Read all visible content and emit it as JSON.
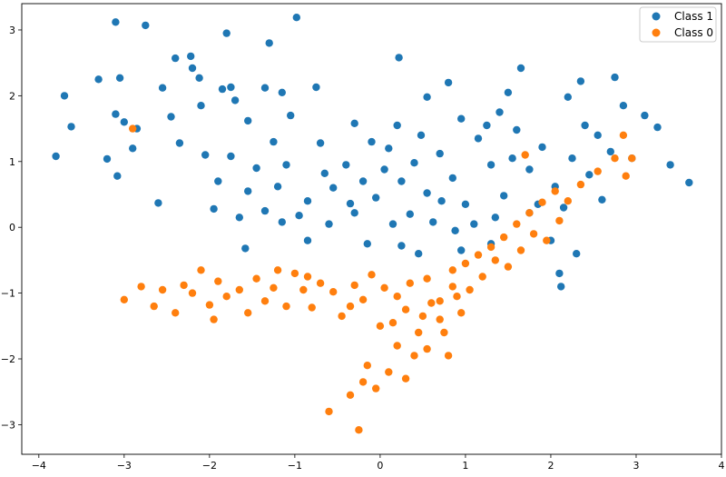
{
  "chart_data": {
    "type": "scatter",
    "title": "",
    "xlabel": "",
    "ylabel": "",
    "xlim": [
      -4.2,
      4.0
    ],
    "ylim": [
      -3.45,
      3.4
    ],
    "xticks": [
      -4,
      -3,
      -2,
      -1,
      0,
      1,
      2,
      3,
      4
    ],
    "yticks": [
      -3,
      -2,
      -1,
      0,
      1,
      2,
      3
    ],
    "xtick_labels": [
      "−4",
      "−3",
      "−2",
      "−1",
      "0",
      "1",
      "2",
      "3",
      "4"
    ],
    "ytick_labels": [
      "−3",
      "−2",
      "−1",
      "0",
      "1",
      "2",
      "3"
    ],
    "grid": false,
    "legend_position": "top-right",
    "legend_entries": [
      {
        "label": "Class 1",
        "color": "#1f77b4"
      },
      {
        "label": "Class 0",
        "color": "#ff7f0e"
      }
    ],
    "series": [
      {
        "name": "Class 1",
        "color": "#1f77b4",
        "points": [
          [
            -3.1,
            3.12
          ],
          [
            -2.75,
            3.07
          ],
          [
            -1.8,
            2.95
          ],
          [
            -1.3,
            2.8
          ],
          [
            -0.98,
            3.19
          ],
          [
            0.22,
            2.58
          ],
          [
            -3.3,
            2.25
          ],
          [
            -3.7,
            2.0
          ],
          [
            -3.62,
            1.53
          ],
          [
            -3.8,
            1.08
          ],
          [
            -3.2,
            1.04
          ],
          [
            -3.08,
            0.78
          ],
          [
            -3.1,
            1.72
          ],
          [
            -3.0,
            1.6
          ],
          [
            -2.85,
            1.5
          ],
          [
            -2.9,
            1.2
          ],
          [
            -3.05,
            2.27
          ],
          [
            -2.55,
            2.12
          ],
          [
            -2.4,
            2.57
          ],
          [
            -2.22,
            2.6
          ],
          [
            -2.2,
            2.42
          ],
          [
            -2.12,
            2.27
          ],
          [
            -1.85,
            2.1
          ],
          [
            -1.75,
            2.13
          ],
          [
            -1.7,
            1.93
          ],
          [
            -1.55,
            1.62
          ],
          [
            -1.35,
            2.12
          ],
          [
            -1.15,
            2.05
          ],
          [
            -1.05,
            1.7
          ],
          [
            -0.75,
            2.13
          ],
          [
            -2.6,
            0.37
          ],
          [
            -1.95,
            0.28
          ],
          [
            -1.58,
            -0.32
          ],
          [
            -1.35,
            0.25
          ],
          [
            -1.15,
            0.08
          ],
          [
            -0.85,
            -0.2
          ],
          [
            -0.6,
            0.05
          ],
          [
            -0.35,
            0.36
          ],
          [
            -0.15,
            -0.25
          ],
          [
            0.25,
            -0.28
          ],
          [
            0.45,
            -0.4
          ],
          [
            0.95,
            -0.35
          ],
          [
            1.3,
            -0.25
          ],
          [
            1.75,
            0.22
          ],
          [
            2.0,
            -0.2
          ],
          [
            2.1,
            -0.7
          ],
          [
            2.3,
            -0.4
          ],
          [
            2.12,
            -0.9
          ],
          [
            3.25,
            1.52
          ],
          [
            3.4,
            0.95
          ],
          [
            3.62,
            0.68
          ],
          [
            3.1,
            1.7
          ],
          [
            2.85,
            1.85
          ],
          [
            2.75,
            2.28
          ],
          [
            2.55,
            1.4
          ],
          [
            2.35,
            2.22
          ],
          [
            2.2,
            1.98
          ],
          [
            1.65,
            2.42
          ],
          [
            1.5,
            2.05
          ],
          [
            1.4,
            1.75
          ],
          [
            0.8,
            2.2
          ],
          [
            0.55,
            1.98
          ],
          [
            0.2,
            1.55
          ],
          [
            -0.1,
            1.3
          ],
          [
            -0.4,
            0.95
          ],
          [
            -0.55,
            0.6
          ],
          [
            -0.85,
            0.4
          ],
          [
            -1.2,
            0.62
          ],
          [
            -1.45,
            0.9
          ],
          [
            -1.75,
            1.08
          ],
          [
            -2.05,
            1.1
          ],
          [
            -2.35,
            1.28
          ],
          [
            0.05,
            0.88
          ],
          [
            0.25,
            0.7
          ],
          [
            0.4,
            0.98
          ],
          [
            0.55,
            0.52
          ],
          [
            0.7,
            1.12
          ],
          [
            0.85,
            0.75
          ],
          [
            1.0,
            0.35
          ],
          [
            1.15,
            1.35
          ],
          [
            1.3,
            0.95
          ],
          [
            1.45,
            0.48
          ],
          [
            1.6,
            1.48
          ],
          [
            1.75,
            0.88
          ],
          [
            1.9,
            1.22
          ],
          [
            2.05,
            0.62
          ],
          [
            2.25,
            1.05
          ],
          [
            2.45,
            0.8
          ],
          [
            2.6,
            0.42
          ],
          [
            2.95,
            1.05
          ],
          [
            -0.3,
            1.58
          ],
          [
            -0.05,
            0.45
          ],
          [
            0.35,
            0.2
          ],
          [
            0.62,
            0.08
          ],
          [
            0.88,
            -0.05
          ],
          [
            1.1,
            0.05
          ],
          [
            -1.55,
            0.55
          ],
          [
            -1.1,
            0.95
          ],
          [
            -0.7,
            1.28
          ],
          [
            -0.2,
            0.7
          ],
          [
            0.1,
            1.2
          ],
          [
            0.48,
            1.4
          ],
          [
            0.95,
            1.65
          ],
          [
            1.25,
            1.55
          ],
          [
            1.55,
            1.05
          ],
          [
            1.85,
            0.35
          ],
          [
            2.15,
            0.3
          ],
          [
            2.4,
            1.55
          ],
          [
            -2.45,
            1.68
          ],
          [
            -2.1,
            1.85
          ],
          [
            -1.9,
            0.7
          ],
          [
            -1.65,
            0.15
          ],
          [
            -1.25,
            1.3
          ],
          [
            -0.95,
            0.18
          ],
          [
            -0.65,
            0.82
          ],
          [
            -0.3,
            0.22
          ],
          [
            0.15,
            0.05
          ],
          [
            0.72,
            0.4
          ],
          [
            1.35,
            0.15
          ],
          [
            2.7,
            1.15
          ]
        ]
      },
      {
        "name": "Class 0",
        "color": "#ff7f0e",
        "points": [
          [
            -3.0,
            -1.1
          ],
          [
            -2.8,
            -0.9
          ],
          [
            -2.65,
            -1.2
          ],
          [
            -2.4,
            -1.3
          ],
          [
            -2.3,
            -0.88
          ],
          [
            -2.2,
            -1.0
          ],
          [
            -2.1,
            -0.65
          ],
          [
            -2.0,
            -1.18
          ],
          [
            -1.9,
            -0.82
          ],
          [
            -1.8,
            -1.05
          ],
          [
            -1.65,
            -0.95
          ],
          [
            -1.55,
            -1.3
          ],
          [
            -1.45,
            -0.78
          ],
          [
            -1.35,
            -1.12
          ],
          [
            -1.25,
            -0.92
          ],
          [
            -1.1,
            -1.2
          ],
          [
            -1.0,
            -0.7
          ],
          [
            -0.9,
            -0.95
          ],
          [
            -0.8,
            -1.22
          ],
          [
            -0.7,
            -0.85
          ],
          [
            -0.55,
            -0.98
          ],
          [
            -0.45,
            -1.35
          ],
          [
            -0.3,
            -0.88
          ],
          [
            -0.2,
            -1.1
          ],
          [
            -0.1,
            -0.72
          ],
          [
            0.05,
            -0.92
          ],
          [
            0.2,
            -1.05
          ],
          [
            0.35,
            -0.85
          ],
          [
            0.55,
            -0.78
          ],
          [
            0.7,
            -1.12
          ],
          [
            0.85,
            -0.65
          ],
          [
            1.0,
            -0.55
          ],
          [
            1.15,
            -0.42
          ],
          [
            1.3,
            -0.3
          ],
          [
            1.45,
            -0.15
          ],
          [
            1.6,
            0.05
          ],
          [
            1.75,
            0.22
          ],
          [
            1.9,
            0.38
          ],
          [
            2.05,
            0.55
          ],
          [
            2.2,
            0.4
          ],
          [
            2.35,
            0.65
          ],
          [
            2.55,
            0.85
          ],
          [
            2.75,
            1.05
          ],
          [
            2.88,
            0.78
          ],
          [
            2.95,
            1.05
          ],
          [
            2.85,
            1.4
          ],
          [
            1.7,
            1.1
          ],
          [
            -2.9,
            1.5
          ],
          [
            -0.6,
            -2.8
          ],
          [
            -0.25,
            -3.08
          ],
          [
            -0.35,
            -2.55
          ],
          [
            -0.2,
            -2.35
          ],
          [
            -0.15,
            -2.1
          ],
          [
            -0.05,
            -2.45
          ],
          [
            0.1,
            -2.2
          ],
          [
            0.2,
            -1.8
          ],
          [
            0.3,
            -2.3
          ],
          [
            0.45,
            -1.6
          ],
          [
            0.55,
            -1.85
          ],
          [
            0.7,
            -1.4
          ],
          [
            0.8,
            -1.95
          ],
          [
            0.95,
            -1.3
          ],
          [
            0.15,
            -1.45
          ],
          [
            0.3,
            -1.25
          ],
          [
            0.4,
            -1.95
          ],
          [
            0.6,
            -1.15
          ],
          [
            0.75,
            -1.6
          ],
          [
            0.9,
            -1.05
          ],
          [
            1.05,
            -0.95
          ],
          [
            1.2,
            -0.75
          ],
          [
            1.35,
            -0.5
          ],
          [
            1.5,
            -0.6
          ],
          [
            1.65,
            -0.35
          ],
          [
            1.8,
            -0.1
          ],
          [
            1.95,
            -0.2
          ],
          [
            2.1,
            0.1
          ],
          [
            -1.95,
            -1.4
          ],
          [
            -2.55,
            -0.95
          ],
          [
            -1.2,
            -0.65
          ],
          [
            -0.85,
            -0.75
          ],
          [
            -0.35,
            -1.2
          ],
          [
            0.0,
            -1.5
          ],
          [
            0.5,
            -1.35
          ],
          [
            0.85,
            -0.9
          ]
        ]
      }
    ]
  }
}
